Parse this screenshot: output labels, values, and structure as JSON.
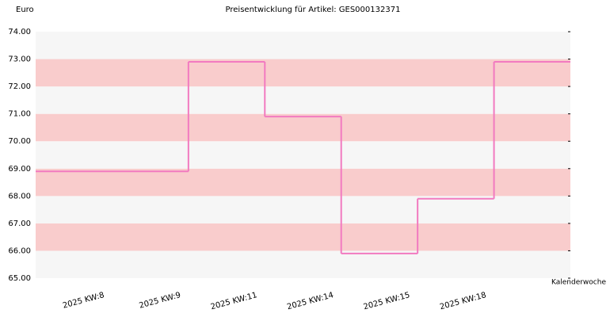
{
  "chart_data": {
    "type": "step",
    "title": "Preisentwicklung für Artikel: GES000132371",
    "y_label": "Euro",
    "x_label": "Kalenderwoche",
    "categories": [
      "2025 KW:8",
      "2025 KW:9",
      "2025 KW:11",
      "2025 KW:14",
      "2025 KW:15",
      "2025 KW:18"
    ],
    "values": [
      68.9,
      72.9,
      70.9,
      65.9,
      67.9,
      72.9
    ],
    "color": "#f27ac0",
    "band_colors": [
      "#f6f6f6",
      "#f9cccc"
    ],
    "ylim": [
      65,
      74
    ],
    "yticks": [
      {
        "value": 65,
        "label": "65.00"
      },
      {
        "value": 66,
        "label": "66.00"
      },
      {
        "value": 67,
        "label": "67.00"
      },
      {
        "value": 68,
        "label": "68.00"
      },
      {
        "value": 69,
        "label": "69.00"
      },
      {
        "value": 70,
        "label": "70.00"
      },
      {
        "value": 71,
        "label": "71.00"
      },
      {
        "value": 72,
        "label": "72.00"
      },
      {
        "value": 73,
        "label": "73.00"
      },
      {
        "value": 74,
        "label": "74.00"
      }
    ]
  }
}
